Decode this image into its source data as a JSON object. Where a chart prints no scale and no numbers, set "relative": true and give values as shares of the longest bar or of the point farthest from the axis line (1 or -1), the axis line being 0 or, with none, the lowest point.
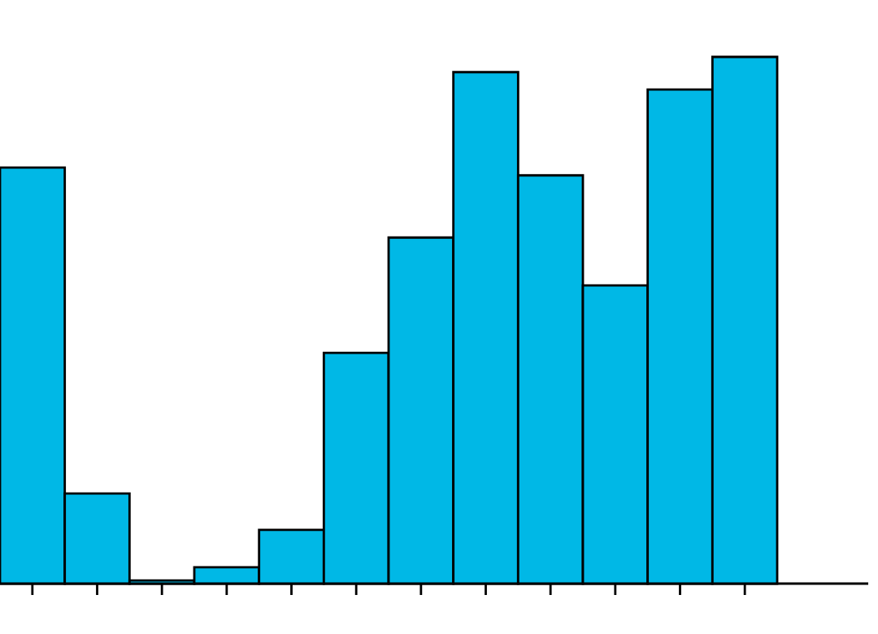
{
  "chart_data": {
    "type": "bar",
    "relative": true,
    "categories": [
      null,
      null,
      null,
      null,
      null,
      null,
      null,
      null,
      null,
      null,
      null,
      null
    ],
    "values": [
      0.79,
      0.171,
      0.006,
      0.031,
      0.102,
      0.438,
      0.657,
      0.971,
      0.775,
      0.566,
      0.938,
      1
    ],
    "color": "#00b8e6"
  }
}
